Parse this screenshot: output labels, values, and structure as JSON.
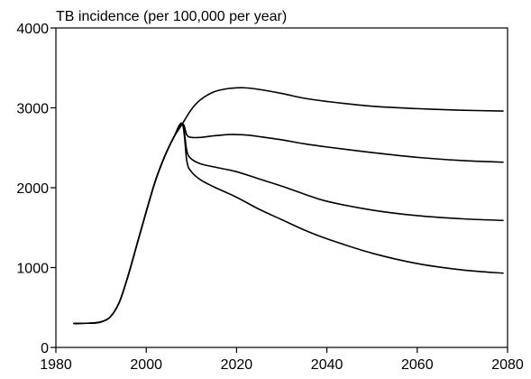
{
  "chart_data": {
    "type": "line",
    "title": "TB incidence (per 100,000 per year)",
    "xlabel": "",
    "ylabel": "",
    "xlim": [
      1980,
      2080
    ],
    "ylim": [
      0,
      4000
    ],
    "xticks": [
      1980,
      2000,
      2020,
      2040,
      2060,
      2080
    ],
    "yticks": [
      0,
      1000,
      2000,
      3000,
      4000
    ],
    "grid": false,
    "legend": "none",
    "series": [
      {
        "x": [
          1984,
          1988,
          1990,
          1992,
          1994,
          1996,
          1998,
          2000,
          2002,
          2004,
          2006,
          2008,
          2010,
          2012,
          2015,
          2018,
          2020,
          2022,
          2025,
          2030,
          2035,
          2040,
          2050,
          2060,
          2070,
          2079
        ],
        "values": [
          300,
          305,
          320,
          380,
          560,
          900,
          1300,
          1700,
          2080,
          2380,
          2620,
          2800,
          2980,
          3100,
          3200,
          3240,
          3250,
          3250,
          3230,
          3180,
          3120,
          3080,
          3020,
          2990,
          2970,
          2960
        ]
      },
      {
        "x": [
          1984,
          1988,
          1990,
          1992,
          1994,
          1996,
          1998,
          2000,
          2002,
          2004,
          2006,
          2008,
          2009,
          2010,
          2012,
          2015,
          2018,
          2020,
          2022,
          2025,
          2030,
          2035,
          2040,
          2050,
          2060,
          2070,
          2079
        ],
        "values": [
          300,
          305,
          320,
          380,
          560,
          900,
          1300,
          1700,
          2080,
          2380,
          2620,
          2800,
          2660,
          2630,
          2630,
          2650,
          2665,
          2665,
          2660,
          2640,
          2600,
          2550,
          2510,
          2440,
          2380,
          2340,
          2320
        ]
      },
      {
        "x": [
          1984,
          1988,
          1990,
          1992,
          1994,
          1996,
          1998,
          2000,
          2002,
          2004,
          2006,
          2008,
          2009,
          2010,
          2012,
          2015,
          2020,
          2025,
          2030,
          2035,
          2040,
          2050,
          2060,
          2070,
          2079
        ],
        "values": [
          300,
          305,
          320,
          380,
          560,
          900,
          1300,
          1700,
          2080,
          2380,
          2620,
          2800,
          2460,
          2360,
          2300,
          2260,
          2200,
          2110,
          2020,
          1920,
          1830,
          1720,
          1650,
          1610,
          1590
        ]
      },
      {
        "x": [
          1984,
          1988,
          1990,
          1992,
          1994,
          1996,
          1998,
          2000,
          2002,
          2004,
          2006,
          2008,
          2009,
          2010,
          2012,
          2015,
          2020,
          2025,
          2030,
          2035,
          2040,
          2050,
          2060,
          2070,
          2079
        ],
        "values": [
          300,
          305,
          320,
          380,
          560,
          900,
          1300,
          1700,
          2080,
          2380,
          2620,
          2800,
          2330,
          2200,
          2100,
          2010,
          1880,
          1730,
          1600,
          1470,
          1360,
          1180,
          1050,
          970,
          930
        ]
      }
    ]
  }
}
